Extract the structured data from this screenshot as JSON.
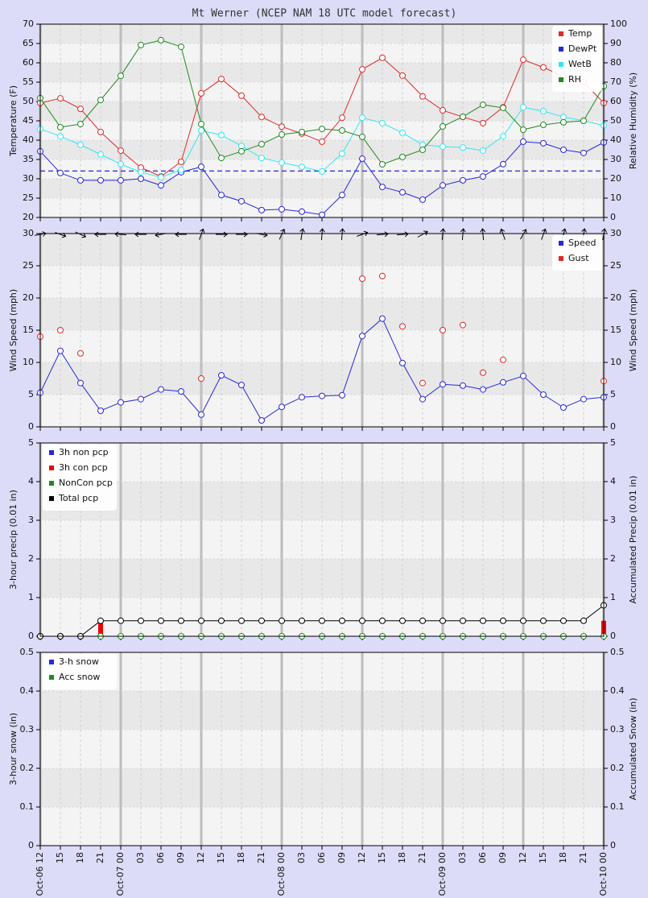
{
  "chart_data": [
    {
      "type": "line",
      "title": "Mt Werner (NCEP NAM 18 UTC model forecast)",
      "ylabel": "Temperature (F)",
      "y2label": "Relative Humidity (%)",
      "ylim": [
        20,
        70
      ],
      "yticks": [
        20,
        25,
        30,
        35,
        40,
        45,
        50,
        55,
        60,
        65,
        70
      ],
      "y2lim": [
        0,
        100
      ],
      "y2ticks": [
        0,
        10,
        20,
        30,
        40,
        50,
        60,
        70,
        80,
        90,
        100
      ],
      "legend": "top-right",
      "freezing_line": 32,
      "freezing_color": "#4040e0",
      "series": [
        {
          "name": "Temp",
          "color": "#e02828",
          "kind": "line",
          "values": [
            49.6,
            50.8,
            48.1,
            42.1,
            37.3,
            32.9,
            30.6,
            34.4,
            52.1,
            55.8,
            51.5,
            46.0,
            43.5,
            41.7,
            39.6,
            45.8,
            58.3,
            61.3,
            56.7,
            51.3,
            47.7,
            46.0,
            44.4,
            48.5,
            60.8,
            58.8,
            56.5,
            55.0,
            49.6
          ]
        },
        {
          "name": "DewPt",
          "color": "#2828d8",
          "kind": "line",
          "values": [
            37.1,
            31.5,
            29.6,
            29.6,
            29.6,
            30.0,
            28.3,
            31.7,
            33.1,
            25.8,
            24.2,
            21.9,
            22.1,
            21.5,
            20.7,
            25.8,
            35.2,
            27.9,
            26.5,
            24.6,
            28.3,
            29.6,
            30.6,
            33.8,
            39.6,
            39.2,
            37.5,
            36.7,
            39.4
          ]
        },
        {
          "name": "WetB",
          "color": "#30e8f0",
          "kind": "line",
          "values": [
            42.9,
            41.0,
            38.8,
            36.3,
            33.8,
            31.7,
            30.4,
            32.3,
            42.5,
            41.3,
            38.5,
            35.4,
            34.2,
            33.1,
            31.9,
            36.5,
            45.8,
            44.4,
            41.9,
            38.8,
            38.3,
            38.1,
            37.3,
            41.0,
            48.5,
            47.5,
            46.0,
            45.0,
            43.8
          ]
        },
        {
          "name": "RH",
          "color": "#208a20",
          "kind": "line",
          "axis": "y2",
          "values": [
            61.7,
            46.7,
            48.3,
            60.8,
            73.3,
            89.2,
            91.7,
            88.3,
            48.3,
            30.8,
            34.2,
            37.9,
            42.9,
            44.2,
            45.8,
            45.0,
            41.7,
            27.5,
            31.3,
            35.0,
            47.1,
            52.1,
            58.3,
            56.7,
            45.4,
            47.9,
            49.2,
            50.0,
            67.9
          ]
        }
      ]
    },
    {
      "type": "line",
      "ylabel": "Wind Speed (mph)",
      "y2label": "Wind Speed (mph)",
      "ylim": [
        0,
        30
      ],
      "yticks": [
        0,
        5,
        10,
        15,
        20,
        25,
        30
      ],
      "y2lim": [
        0,
        30
      ],
      "y2ticks": [
        0,
        5,
        10,
        15,
        20,
        25,
        30
      ],
      "legend": "top-right",
      "arrow_color": "#000000",
      "wind_direction": [
        80,
        110,
        115,
        270,
        275,
        270,
        260,
        270,
        20,
        90,
        90,
        100,
        25,
        10,
        5,
        5,
        70,
        85,
        85,
        60,
        5,
        5,
        355,
        340,
        30,
        20,
        15,
        10,
        10
      ],
      "series": [
        {
          "name": "Speed",
          "color": "#2828d8",
          "kind": "line",
          "values": [
            5.3,
            11.8,
            6.8,
            2.5,
            3.8,
            4.3,
            5.8,
            5.5,
            1.9,
            8.0,
            6.5,
            1.0,
            3.1,
            4.6,
            4.8,
            4.9,
            14.1,
            16.8,
            9.9,
            4.3,
            6.6,
            6.4,
            5.8,
            6.9,
            7.9,
            5.0,
            3.0,
            4.3,
            4.6
          ]
        },
        {
          "name": "Gust",
          "color": "#e02828",
          "kind": "points",
          "values": [
            14.0,
            15.0,
            11.4,
            null,
            null,
            null,
            null,
            null,
            7.5,
            null,
            null,
            null,
            null,
            null,
            null,
            null,
            23.0,
            23.4,
            15.6,
            6.8,
            15.0,
            15.8,
            8.4,
            10.4,
            null,
            null,
            null,
            null,
            7.1
          ]
        }
      ]
    },
    {
      "type": "combo",
      "ylabel": "3-hour precip (0.01 in)",
      "y2label": "Accumulated Precip (0.01 in)",
      "ylim": [
        0,
        5
      ],
      "yticks": [
        0,
        1,
        2,
        3,
        4,
        5
      ],
      "y2lim": [
        0,
        5
      ],
      "y2ticks": [
        0,
        1,
        2,
        3,
        4,
        5
      ],
      "legend": "top-left",
      "series": [
        {
          "name": "3h non pcp",
          "color": "#2828d8",
          "kind": "bar",
          "values": [
            0,
            0,
            0,
            0,
            0,
            0,
            0,
            0,
            0,
            0,
            0,
            0,
            0,
            0,
            0,
            0,
            0,
            0,
            0,
            0,
            0,
            0,
            0,
            0,
            0,
            0,
            0,
            0,
            0
          ]
        },
        {
          "name": "3h con pcp",
          "color": "#f00000",
          "kind": "bar",
          "values": [
            0,
            0,
            0,
            0.4,
            0,
            0,
            0,
            0,
            0,
            0,
            0,
            0,
            0,
            0,
            0,
            0,
            0,
            0,
            0,
            0,
            0,
            0,
            0,
            0,
            0,
            0,
            0,
            0,
            0.4
          ]
        },
        {
          "name": "NonCon pcp",
          "color": "#208a20",
          "kind": "line",
          "axis": "y2",
          "values": [
            0,
            0,
            0,
            0,
            0,
            0,
            0,
            0,
            0,
            0,
            0,
            0,
            0,
            0,
            0,
            0,
            0,
            0,
            0,
            0,
            0,
            0,
            0,
            0,
            0,
            0,
            0,
            0,
            0
          ]
        },
        {
          "name": "Total pcp",
          "color": "#000000",
          "kind": "line",
          "axis": "y2",
          "values": [
            0,
            0,
            0,
            0.4,
            0.4,
            0.4,
            0.4,
            0.4,
            0.4,
            0.4,
            0.4,
            0.4,
            0.4,
            0.4,
            0.4,
            0.4,
            0.4,
            0.4,
            0.4,
            0.4,
            0.4,
            0.4,
            0.4,
            0.4,
            0.4,
            0.4,
            0.4,
            0.4,
            0.8
          ]
        }
      ]
    },
    {
      "type": "combo",
      "ylabel": "3-hour snow (in)",
      "y2label": "Accumulated Snow (in)",
      "ylim": [
        0,
        0.5
      ],
      "yticks": [
        0,
        0.1,
        0.2,
        0.3,
        0.4,
        0.5
      ],
      "y2lim": [
        0,
        0.5
      ],
      "y2ticks": [
        0,
        0.1,
        0.2,
        0.3,
        0.4,
        0.5
      ],
      "legend": "top-left",
      "categories": [
        "Oct-06 12",
        "15",
        "18",
        "21",
        "Oct-07 00",
        "03",
        "06",
        "09",
        "12",
        "15",
        "18",
        "21",
        "Oct-08 00",
        "03",
        "06",
        "09",
        "12",
        "15",
        "18",
        "21",
        "Oct-09 00",
        "03",
        "06",
        "09",
        "12",
        "15",
        "18",
        "21",
        "Oct-10 00"
      ],
      "series": [
        {
          "name": "3-h snow",
          "color": "#2828d8",
          "kind": "bar",
          "values": [
            0,
            0,
            0,
            0,
            0,
            0,
            0,
            0,
            0,
            0,
            0,
            0,
            0,
            0,
            0,
            0,
            0,
            0,
            0,
            0,
            0,
            0,
            0,
            0,
            0,
            0,
            0,
            0,
            0
          ]
        },
        {
          "name": "Acc snow",
          "color": "#208a20",
          "kind": "flat",
          "axis": "y2",
          "values": [
            0,
            0,
            0,
            0,
            0,
            0,
            0,
            0,
            0,
            0,
            0,
            0,
            0,
            0,
            0,
            0,
            0,
            0,
            0,
            0,
            0,
            0,
            0,
            0,
            0,
            0,
            0,
            0,
            0
          ]
        }
      ]
    }
  ]
}
